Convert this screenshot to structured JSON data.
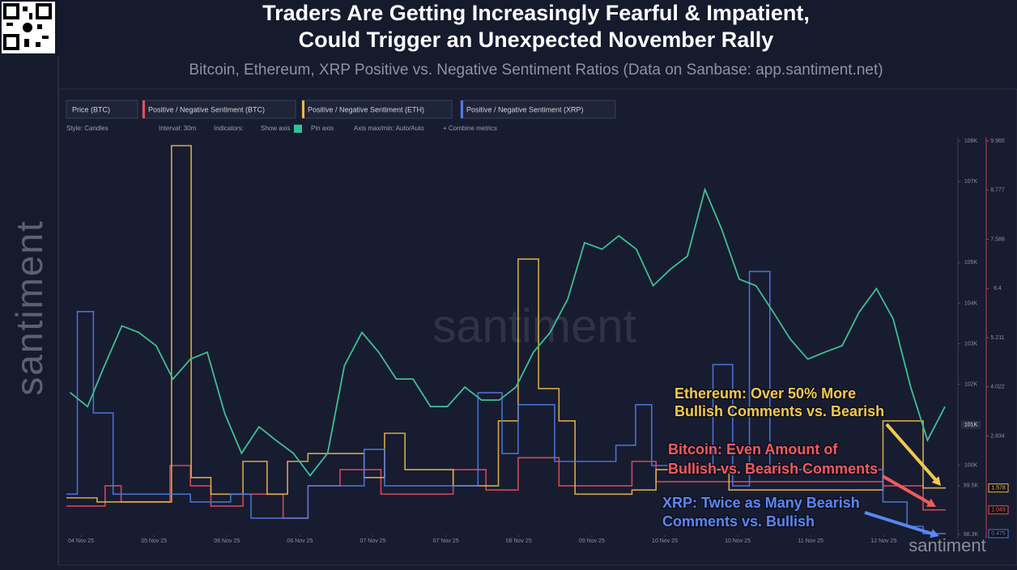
{
  "header": {
    "title": [
      "Traders Are Getting Increasingly Fearful & Impatient,",
      "Could Trigger an Unexpected November Rally"
    ],
    "subtitle": "Bitcoin, Ethereum, XRP Positive vs. Negative Sentiment Ratios (Data on Sanbase: app.santiment.net)"
  },
  "toolbar": {
    "style": "Style: Candles",
    "interval": "Interval: 30m",
    "indicators": "Indicators:",
    "show_axis": "Show axis",
    "pin_axis": "Pin axis",
    "axis": "Axis max/min: Auto/Auto",
    "combine": "+ Combine metrics"
  },
  "watermark": "santiment",
  "chart_data": {
    "type": "line",
    "xlim": [
      -0.2,
      11.85
    ],
    "xticks": [
      {
        "value": 0,
        "label": "04 Nov 25"
      },
      {
        "value": 1,
        "label": "05 Nov 25"
      },
      {
        "value": 2,
        "label": "06 Nov 25"
      },
      {
        "value": 3,
        "label": "06 Nov 25"
      },
      {
        "value": 4,
        "label": "07 Nov 25"
      },
      {
        "value": 5,
        "label": "07 Nov 25"
      },
      {
        "value": 6,
        "label": "08 Nov 25"
      },
      {
        "value": 7,
        "label": "09 Nov 25"
      },
      {
        "value": 8,
        "label": "10 Nov 25"
      },
      {
        "value": 9,
        "label": "10 Nov 25"
      },
      {
        "value": 10,
        "label": "11 Nov 25"
      },
      {
        "value": 11,
        "label": "12 Nov 25"
      }
    ],
    "ylim": [
      98300,
      108000
    ],
    "yticks": [
      {
        "value": 108000,
        "label": "108K"
      },
      {
        "value": 107000,
        "label": "107K"
      },
      {
        "value": 105000,
        "label": "105K"
      },
      {
        "value": 104000,
        "label": "104K"
      },
      {
        "value": 103000,
        "label": "103K"
      },
      {
        "value": 102000,
        "label": "102K"
      },
      {
        "value": 100000,
        "label": "100K"
      },
      {
        "value": 99500,
        "label": "99.5K"
      },
      {
        "value": 98300,
        "label": "98.3K"
      }
    ],
    "y2lim": [
      0.457,
      9.965
    ],
    "y2ticks": [
      9.965,
      8.777,
      7.588,
      6.4,
      5.211,
      4.022,
      2.834
    ],
    "price_badge": {
      "value": 101000,
      "label": "101K"
    },
    "series": [
      {
        "name": "Price (BTC)",
        "color": "#3fbf93",
        "x": [
          -0.15,
          0.09,
          0.32,
          0.56,
          0.79,
          1.03,
          1.26,
          1.5,
          1.73,
          1.97,
          2.2,
          2.44,
          2.67,
          2.91,
          3.14,
          3.38,
          3.61,
          3.85,
          4.08,
          4.32,
          4.55,
          4.79,
          5.02,
          5.26,
          5.49,
          5.73,
          5.96,
          6.2,
          6.43,
          6.67,
          6.9,
          7.14,
          7.37,
          7.61,
          7.84,
          8.08,
          8.31,
          8.55,
          8.78,
          9.02,
          9.25,
          9.49,
          9.72,
          9.96,
          10.19,
          10.43,
          10.66,
          10.9,
          11.13,
          11.37,
          11.6,
          11.84
        ],
        "values": [
          101800,
          101450,
          102450,
          103440,
          103280,
          102950,
          102130,
          102620,
          102790,
          101280,
          100300,
          100950,
          100620,
          100300,
          99750,
          100300,
          102460,
          103280,
          102790,
          102130,
          102130,
          101450,
          101450,
          101930,
          101610,
          101610,
          101930,
          102790,
          103280,
          104100,
          105490,
          105330,
          105660,
          105330,
          104430,
          104840,
          105160,
          106800,
          105820,
          104590,
          104430,
          103770,
          103110,
          102620,
          102790,
          102950,
          103770,
          104360,
          103610,
          101930,
          100620,
          101450
        ]
      },
      {
        "name": "Positive / Negative Sentiment (BTC)",
        "color": "#e0505e",
        "axis": "y2",
        "step": true,
        "x": [
          -0.2,
          0.33,
          0.55,
          1.22,
          1.5,
          1.78,
          2.22,
          2.77,
          3.11,
          3.55,
          4.11,
          5.1,
          5.55,
          5.99,
          6.55,
          7.55,
          7.88,
          10.99,
          11.54
        ],
        "values": [
          1.14,
          1.63,
          1.24,
          2.12,
          1.63,
          1.14,
          1.43,
          0.85,
          1.63,
          2.02,
          1.43,
          2.02,
          1.53,
          2.31,
          1.63,
          2.22,
          1.73,
          1.63,
          1.049
        ]
      },
      {
        "name": "Positive / Negative Sentiment (ETH)",
        "color": "#e8b94a",
        "axis": "y2",
        "step": true,
        "x": [
          -0.2,
          0.22,
          1.24,
          1.51,
          1.78,
          2.22,
          2.55,
          2.83,
          3.11,
          3.88,
          4.16,
          4.44,
          5.1,
          5.72,
          5.99,
          6.27,
          6.55,
          6.77,
          7.55,
          7.88,
          8.88,
          10.99,
          11.54
        ],
        "values": [
          1.34,
          1.24,
          9.85,
          1.83,
          1.43,
          2.22,
          1.43,
          2.22,
          2.41,
          1.83,
          2.9,
          2.02,
          1.63,
          3.2,
          7.11,
          3.98,
          3.2,
          1.43,
          1.53,
          2.02,
          1.53,
          3.2,
          1.578
        ]
      },
      {
        "name": "Positive / Negative Sentiment (XRP)",
        "color": "#4c7be0",
        "axis": "y2",
        "step": true,
        "x": [
          -0.2,
          -0.05,
          0.17,
          0.44,
          1.5,
          2.05,
          2.33,
          3.11,
          3.88,
          4.16,
          5.44,
          5.77,
          5.99,
          6.49,
          7.33,
          7.6,
          7.82,
          8.66,
          8.93,
          9.16,
          9.44,
          10.99,
          11.32,
          11.54
        ],
        "values": [
          1.43,
          5.84,
          3.39,
          1.43,
          1.24,
          1.43,
          0.85,
          1.63,
          2.51,
          1.63,
          3.88,
          2.41,
          3.59,
          2.22,
          2.61,
          3.59,
          2.12,
          4.56,
          1.63,
          6.81,
          2.02,
          1.24,
          0.65,
          0.475
        ]
      }
    ],
    "annotations": [
      {
        "text": [
          "Ethereum: Over 50% More",
          "Bullish Comments vs. Bearish"
        ],
        "color": "#f2c94c"
      },
      {
        "text": [
          "Bitcoin: Even Amount of",
          "Bullish vs. Bearish Comments"
        ],
        "color": "#ef5b5b"
      },
      {
        "text": [
          "XRP: Twice as Many Bearish",
          "Comments vs. Bullish"
        ],
        "color": "#5a86f0"
      }
    ]
  }
}
